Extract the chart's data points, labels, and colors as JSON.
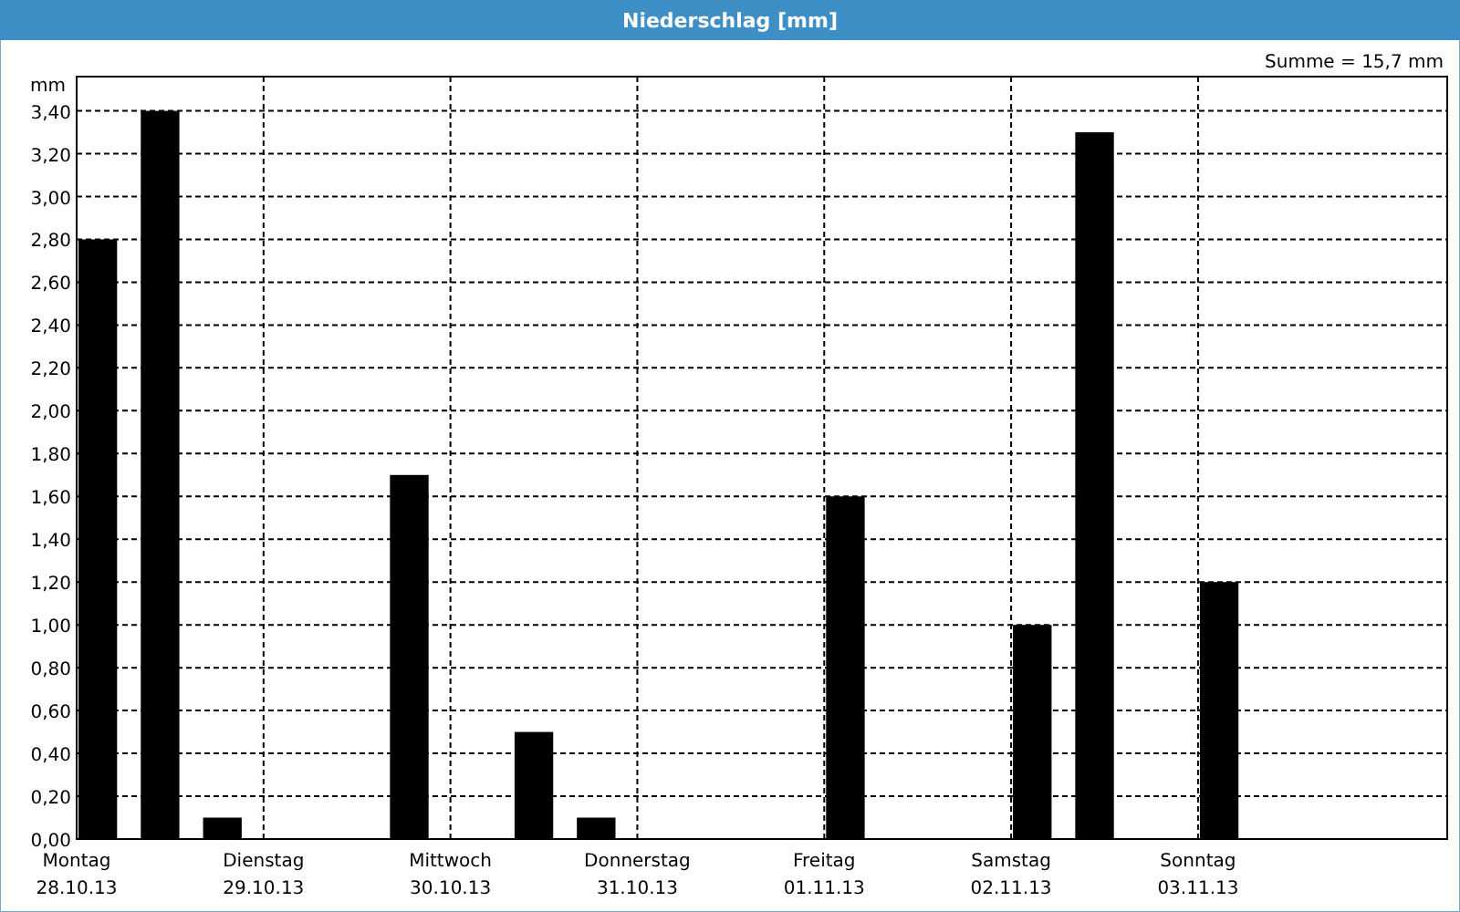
{
  "chart_data": {
    "type": "bar",
    "title": "Niederschlag [mm]",
    "ylabel": "mm",
    "annotations": [
      "Summe = 15,7 mm"
    ],
    "categories": [
      "Montag\n28.10.13",
      null,
      null,
      "Dienstag\n29.10.13",
      null,
      null,
      "Mittwoch\n30.10.13",
      null,
      null,
      "Donnerstag\n31.10.13",
      null,
      null,
      "Freitag\n01.11.13",
      null,
      null,
      "Samstag\n02.11.13",
      null,
      null,
      "Sonntag\n03.11.13",
      null,
      null,
      null
    ],
    "values": [
      2.8,
      3.4,
      0.1,
      0,
      0,
      1.7,
      0,
      0.5,
      0.1,
      0,
      0,
      0,
      1.6,
      0,
      0,
      1.0,
      3.3,
      0,
      1.2,
      0,
      0,
      null
    ],
    "color": "#000000",
    "ylim": [
      0,
      3.56
    ],
    "yticks": [
      {
        "value": 0,
        "label": "0,00"
      },
      {
        "value": 0.2,
        "label": "0,20"
      },
      {
        "value": 0.4,
        "label": "0,40"
      },
      {
        "value": 0.6,
        "label": "0,60"
      },
      {
        "value": 0.8,
        "label": "0,80"
      },
      {
        "value": 1.0,
        "label": "1,00"
      },
      {
        "value": 1.2,
        "label": "1,20"
      },
      {
        "value": 1.4,
        "label": "1,40"
      },
      {
        "value": 1.6,
        "label": "1,60"
      },
      {
        "value": 1.8,
        "label": "1,80"
      },
      {
        "value": 2.0,
        "label": "2,00"
      },
      {
        "value": 2.2,
        "label": "2,20"
      },
      {
        "value": 2.4,
        "label": "2,40"
      },
      {
        "value": 2.6,
        "label": "2,60"
      },
      {
        "value": 2.8,
        "label": "2,80"
      },
      {
        "value": 3.0,
        "label": "3,00"
      },
      {
        "value": 3.2,
        "label": "3,20"
      },
      {
        "value": 3.4,
        "label": "3,40"
      }
    ],
    "grid": true
  }
}
